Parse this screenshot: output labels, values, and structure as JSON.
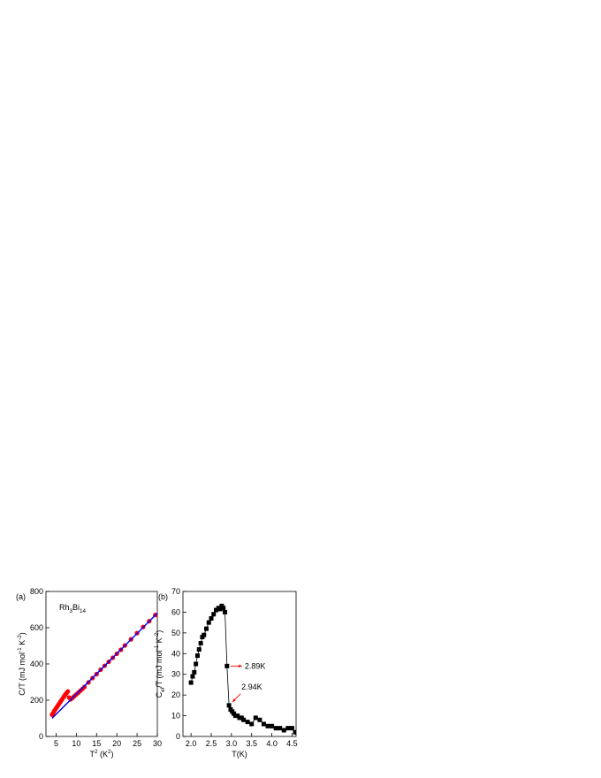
{
  "chart_data": [
    {
      "type": "scatter",
      "panel_label": "(a)",
      "annotation": [
        {
          "text": "Rh"
        },
        {
          "text": "3",
          "script": "sub"
        },
        {
          "text": "Bi"
        },
        {
          "text": "14",
          "script": "sub"
        }
      ],
      "xlabel": [
        {
          "text": "T"
        },
        {
          "text": "2",
          "script": "super"
        },
        {
          "text": " (K"
        },
        {
          "text": "2",
          "script": "super"
        },
        {
          "text": ")"
        }
      ],
      "ylabel": [
        {
          "text": "C/T (mJ mol"
        },
        {
          "text": "-1",
          "script": "super"
        },
        {
          "text": " K"
        },
        {
          "text": "-2",
          "script": "super"
        },
        {
          "text": ")"
        }
      ],
      "xlim": [
        2.5,
        30
      ],
      "xticks": [
        5,
        10,
        15,
        20,
        25,
        30
      ],
      "ylim": [
        0,
        800
      ],
      "yticks": [
        0,
        200,
        400,
        600,
        800
      ],
      "series": [
        {
          "mode": "markers",
          "color": "#ff0000",
          "x": [
            4.0,
            4.3,
            4.6,
            4.9,
            5.2,
            5.5,
            5.8,
            6.1,
            6.4,
            6.7,
            7.0,
            7.3,
            7.6,
            7.9,
            8.2,
            8.6,
            9.0,
            9.5,
            10,
            10.5,
            11,
            11.5,
            12,
            13,
            14,
            15,
            16,
            17,
            18,
            19,
            20,
            21,
            22,
            23.5,
            25,
            26.5,
            28,
            29.5
          ],
          "values": [
            120,
            130,
            142,
            152,
            162,
            172,
            182,
            192,
            202,
            212,
            222,
            232,
            240,
            248,
            215,
            205,
            212,
            222,
            232,
            242,
            252,
            262,
            273,
            298,
            322,
            344,
            368,
            390,
            412,
            434,
            456,
            478,
            502,
            536,
            570,
            604,
            636,
            670
          ]
        },
        {
          "mode": "line",
          "color": "#0000ff",
          "x": [
            4,
            30
          ],
          "values": [
            100,
            680
          ]
        }
      ]
    },
    {
      "type": "line",
      "panel_label": "(b)",
      "xlabel": [
        {
          "text": "T(K)"
        }
      ],
      "ylabel": [
        {
          "text": "C"
        },
        {
          "text": "el",
          "script": "sub"
        },
        {
          "text": "/T (mJ mol"
        },
        {
          "text": "-1",
          "script": "super"
        },
        {
          "text": " K"
        },
        {
          "text": "-2",
          "script": "super"
        },
        {
          "text": ")"
        }
      ],
      "xlim": [
        1.8,
        4.6
      ],
      "xticks": [
        {
          "value": 2,
          "label": "2.0"
        },
        {
          "value": 2.5,
          "label": "2.5"
        },
        {
          "value": 3,
          "label": "3.0"
        },
        {
          "value": 3.5,
          "label": "3.5"
        },
        {
          "value": 4,
          "label": "4.0"
        },
        {
          "value": 4.5,
          "label": "4.5"
        }
      ],
      "ylim": [
        0,
        70
      ],
      "yticks": [
        0,
        10,
        20,
        30,
        40,
        50,
        60,
        70
      ],
      "series": [
        {
          "mode": "markers+line",
          "color": "#000000",
          "x": [
            2.0,
            2.04,
            2.08,
            2.12,
            2.16,
            2.2,
            2.24,
            2.28,
            2.32,
            2.38,
            2.44,
            2.5,
            2.56,
            2.62,
            2.68,
            2.72,
            2.76,
            2.8,
            2.84,
            2.89,
            2.94,
            2.98,
            3.02,
            3.06,
            3.1,
            3.15,
            3.2,
            3.25,
            3.3,
            3.4,
            3.5,
            3.6,
            3.7,
            3.8,
            3.9,
            4.0,
            4.1,
            4.2,
            4.3,
            4.4,
            4.5,
            4.58
          ],
          "values": [
            26,
            29,
            31,
            35,
            39,
            42,
            45,
            48,
            49,
            52,
            55,
            57,
            59,
            61,
            62,
            61.5,
            63,
            62,
            60,
            34,
            15,
            13,
            12,
            11,
            10,
            10,
            9,
            9,
            8,
            7,
            6,
            9,
            8,
            6,
            5,
            5,
            4,
            4,
            3,
            4,
            4,
            2
          ]
        }
      ],
      "annotations": [
        {
          "text": "2.89K",
          "x": 2.89,
          "y": 34,
          "color": "#ff0000"
        },
        {
          "text": "2.94K",
          "x": 2.94,
          "y": 15,
          "color": "#ff0000"
        }
      ]
    }
  ]
}
